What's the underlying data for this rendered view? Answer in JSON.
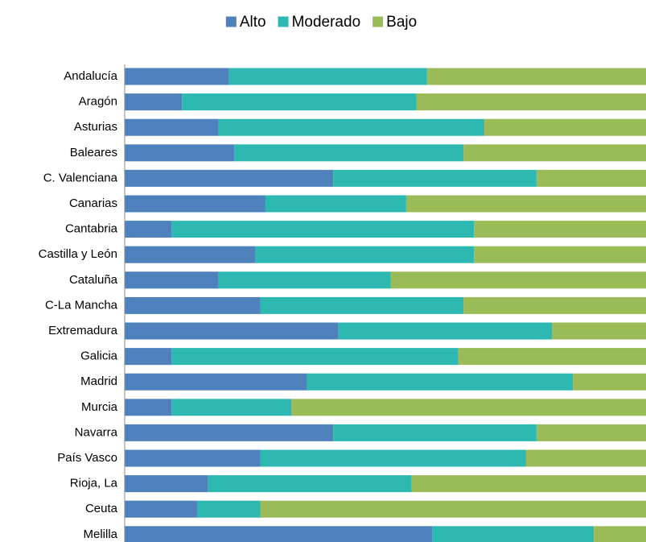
{
  "chart_data": {
    "type": "bar",
    "orientation": "horizontal",
    "stacked": true,
    "categories": [
      "Andalucía",
      "Aragón",
      "Asturias",
      "Baleares",
      "C. Valenciana",
      "Canarias",
      "Cantabria",
      "Castilla y León",
      "Cataluña",
      "C-La Mancha",
      "Extremadura",
      "Galicia",
      "Madrid",
      "Murcia",
      "Navarra",
      "País Vasco",
      "Rioja, La",
      "Ceuta",
      "Melilla"
    ],
    "series": [
      {
        "name": "Alto",
        "color": "#4f81bd",
        "values": [
          20,
          11,
          18,
          21,
          40,
          27,
          9,
          25,
          18,
          26,
          41,
          9,
          35,
          9,
          40,
          26,
          16,
          14,
          59
        ]
      },
      {
        "name": "Moderado",
        "color": "#2eb8b2",
        "values": [
          38,
          45,
          51,
          44,
          39,
          27,
          58,
          42,
          33,
          39,
          41,
          55,
          51,
          23,
          39,
          51,
          39,
          12,
          31
        ]
      },
      {
        "name": "Bajo",
        "color": "#9bbb59",
        "values": [
          42,
          44,
          31,
          35,
          21,
          46,
          33,
          33,
          49,
          35,
          18,
          36,
          14,
          68,
          21,
          23,
          45,
          74,
          10
        ]
      }
    ],
    "xlim": [
      0,
      100
    ],
    "legend": "top"
  }
}
